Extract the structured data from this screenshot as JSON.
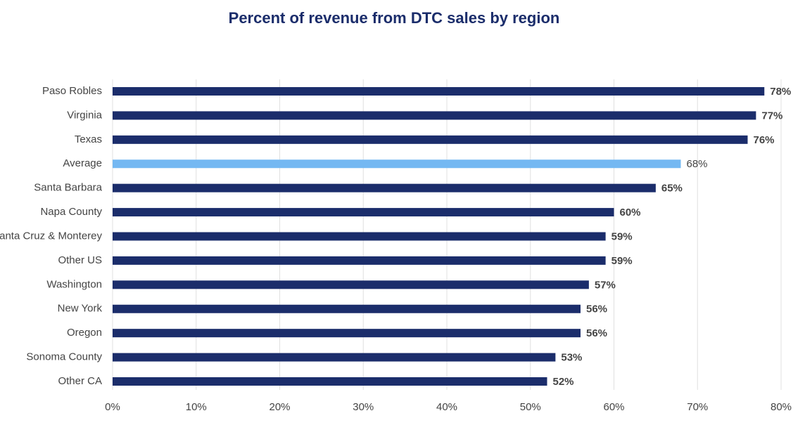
{
  "chart_data": {
    "type": "bar",
    "orientation": "horizontal",
    "title": "Percent of revenue from DTC sales by region",
    "categories": [
      "Paso Robles",
      "Virginia",
      "Texas",
      "Average",
      "Santa Barbara",
      "Napa County",
      "Santa Cruz & Monterey",
      "Other US",
      "Washington",
      "New York",
      "Oregon",
      "Sonoma County",
      "Other CA"
    ],
    "values": [
      78,
      77,
      76,
      68,
      65,
      60,
      59,
      59,
      57,
      56,
      56,
      53,
      52
    ],
    "value_labels": [
      "78%",
      "77%",
      "76%",
      "68%",
      "65%",
      "60%",
      "59%",
      "59%",
      "57%",
      "56%",
      "56%",
      "53%",
      "52%"
    ],
    "colors": [
      "#1b2d6b",
      "#1b2d6b",
      "#1b2d6b",
      "#74b8f2",
      "#1b2d6b",
      "#1b2d6b",
      "#1b2d6b",
      "#1b2d6b",
      "#1b2d6b",
      "#1b2d6b",
      "#1b2d6b",
      "#1b2d6b",
      "#1b2d6b"
    ],
    "xlim": [
      0,
      80
    ],
    "xticks": [
      {
        "value": 0,
        "label": "0%"
      },
      {
        "value": 10,
        "label": "10%"
      },
      {
        "value": 20,
        "label": "20%"
      },
      {
        "value": 30,
        "label": "30%"
      },
      {
        "value": 40,
        "label": "40%"
      },
      {
        "value": 50,
        "label": "50%"
      },
      {
        "value": 60,
        "label": "60%"
      },
      {
        "value": 70,
        "label": "70%"
      },
      {
        "value": 80,
        "label": "80%"
      }
    ],
    "grid": true
  }
}
